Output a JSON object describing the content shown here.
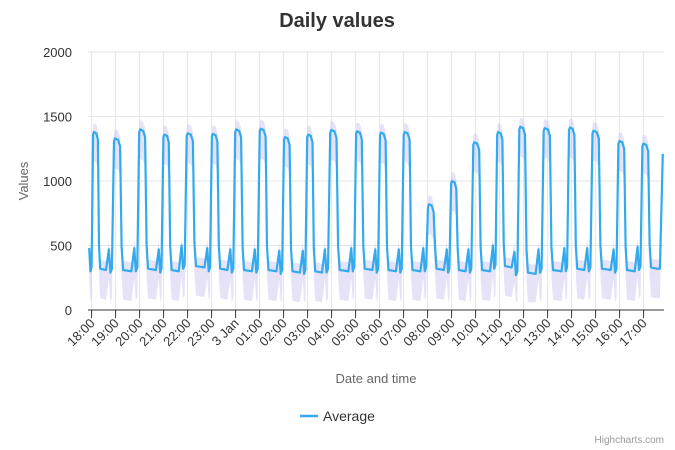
{
  "chart_data": {
    "type": "line",
    "title": "Daily values",
    "xlabel": "Date and time",
    "ylabel": "Values",
    "ylim": [
      0,
      2000
    ],
    "yticks": [
      0,
      500,
      1000,
      1500,
      2000
    ],
    "categories": [
      "18:00",
      "19:00",
      "20:00",
      "21:00",
      "22:00",
      "23:00",
      "3 Jan",
      "01:00",
      "02:00",
      "03:00",
      "04:00",
      "05:00",
      "06:00",
      "07:00",
      "08:00",
      "09:00",
      "10:00",
      "11:00",
      "12:00",
      "13:00",
      "14:00",
      "15:00",
      "16:00",
      "17:00"
    ],
    "x_range_hours": [
      -0.15,
      23.85
    ],
    "series": [
      {
        "name": "Average",
        "color": "#33aaee",
        "cycles": [
          {
            "start": -0.1,
            "low": 300,
            "high": 1380
          },
          {
            "start": 0.72,
            "low": 290,
            "high": 1330
          },
          {
            "start": 1.78,
            "low": 300,
            "high": 1400
          },
          {
            "start": 2.8,
            "low": 290,
            "high": 1360
          },
          {
            "start": 3.75,
            "low": 320,
            "high": 1370
          },
          {
            "start": 4.82,
            "low": 300,
            "high": 1365
          },
          {
            "start": 5.78,
            "low": 290,
            "high": 1400
          },
          {
            "start": 6.8,
            "low": 290,
            "high": 1405
          },
          {
            "start": 7.82,
            "low": 280,
            "high": 1340
          },
          {
            "start": 8.8,
            "low": 280,
            "high": 1360
          },
          {
            "start": 9.72,
            "low": 290,
            "high": 1395
          },
          {
            "start": 10.82,
            "low": 300,
            "high": 1385
          },
          {
            "start": 11.82,
            "low": 290,
            "high": 1375
          },
          {
            "start": 12.8,
            "low": 290,
            "high": 1380
          },
          {
            "start": 13.82,
            "low": 300,
            "high": 820
          },
          {
            "start": 14.8,
            "low": 290,
            "high": 1000
          },
          {
            "start": 15.7,
            "low": 290,
            "high": 1300
          },
          {
            "start": 16.72,
            "low": 320,
            "high": 1380
          },
          {
            "start": 17.62,
            "low": 270,
            "high": 1420
          },
          {
            "start": 18.62,
            "low": 290,
            "high": 1410
          },
          {
            "start": 19.7,
            "low": 300,
            "high": 1415
          },
          {
            "start": 20.65,
            "low": 300,
            "high": 1390
          },
          {
            "start": 21.75,
            "low": 290,
            "high": 1310
          },
          {
            "start": 22.75,
            "low": 310,
            "high": 1290
          }
        ],
        "end_value": 1210
      }
    ],
    "band": {
      "name": "Range",
      "color": "#c8c2f0"
    },
    "legend": {
      "position": "bottom-center",
      "items": [
        "Average"
      ]
    }
  },
  "credits": "Highcharts.com"
}
